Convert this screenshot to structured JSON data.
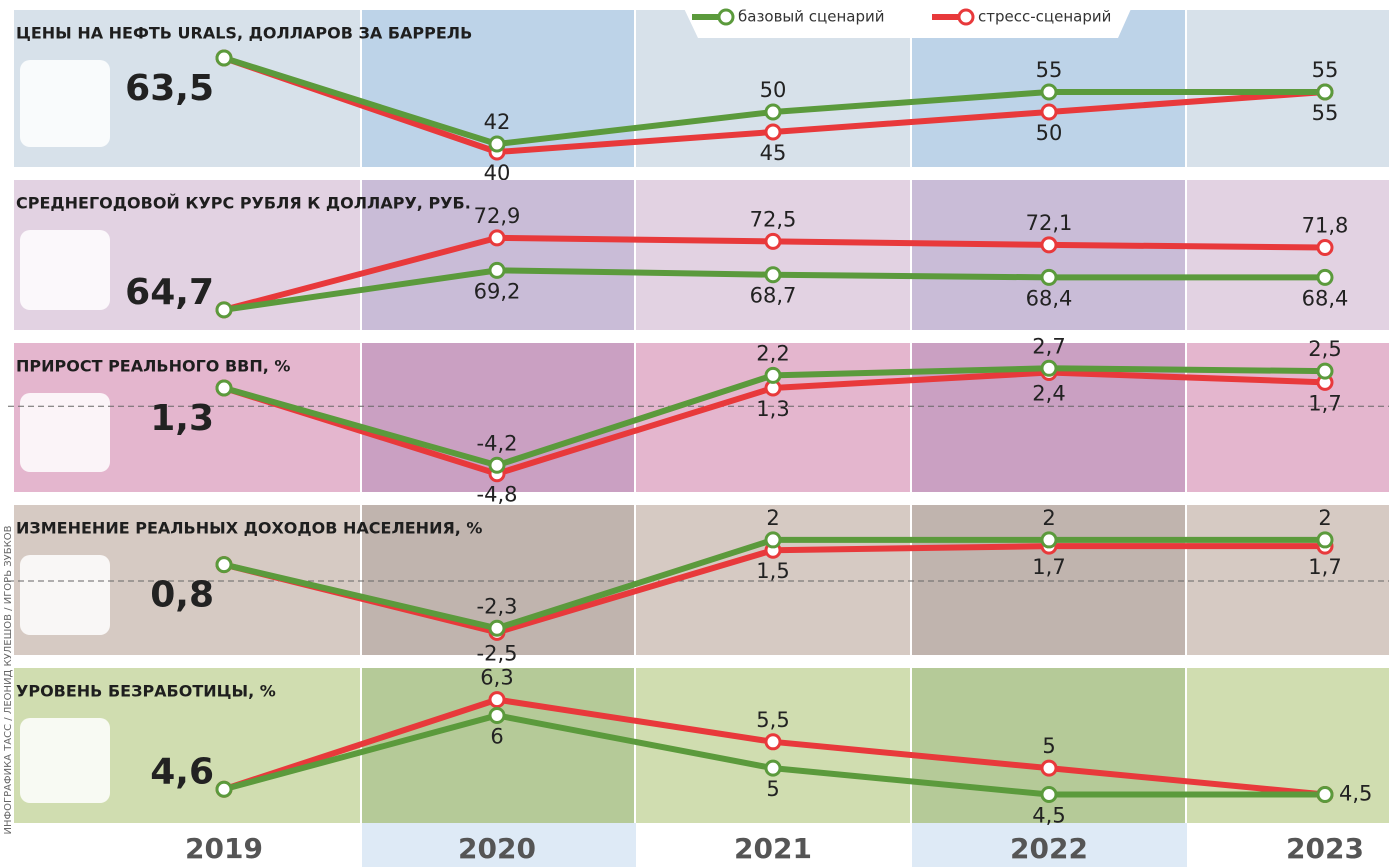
{
  "chart_data": {
    "type": "line",
    "categories": [
      "2019",
      "2020",
      "2021",
      "2022",
      "2023"
    ],
    "series": [
      {
        "name": "базовый сценарий",
        "color": "#5b9a3c"
      },
      {
        "name": "стресс-сценарий",
        "color": "#e8393b"
      }
    ],
    "credit": "ИНФОГРАФИКА ТАСС / ЛЕОНИД КУЛЕШОВ / ИГОРЬ ЗУБКОВ",
    "panels": [
      {
        "title": "ЦЕНЫ НА НЕФТЬ URALS, ДОЛЛАРОВ ЗА БАРРЕЛЬ",
        "ylim": [
          36.25,
          75.5
        ],
        "zero_line": false,
        "series": [
          {
            "values": [
              63.5,
              42,
              50,
              55,
              55
            ],
            "value_labels": [
              "63,5",
              "42",
              "50",
              "55",
              "55"
            ]
          },
          {
            "values": [
              63.5,
              40,
              45,
              50,
              55
            ],
            "value_labels": [
              null,
              "40",
              "45",
              "50",
              "55"
            ]
          }
        ]
      },
      {
        "title": "СРЕДНЕГОДОВОЙ КУРС РУБЛЯ К ДОЛЛАРУ, РУБ.",
        "ylim": [
          62.4,
          79.5
        ],
        "zero_line": false,
        "series": [
          {
            "values": [
              64.7,
              69.2,
              68.7,
              68.4,
              68.4
            ],
            "value_labels": [
              "64,7",
              "69,2",
              "68,7",
              "68,4",
              "68,4"
            ]
          },
          {
            "values": [
              64.7,
              72.9,
              72.5,
              72.1,
              71.8
            ],
            "value_labels": [
              null,
              "72,9",
              "72,5",
              "72,1",
              "71,8"
            ]
          }
        ]
      },
      {
        "title": "ПРИРОСТ РЕАЛЬНОГО ВВП, %",
        "ylim": [
          -6.1,
          4.5
        ],
        "zero_line": true,
        "series": [
          {
            "values": [
              1.3,
              -4.2,
              2.2,
              2.7,
              2.5
            ],
            "value_labels": [
              "1,3",
              "-4,2",
              "2,2",
              "2,7",
              "2,5"
            ]
          },
          {
            "values": [
              1.3,
              -4.8,
              1.3,
              2.4,
              1.7
            ],
            "value_labels": [
              null,
              "-4,8",
              "1,3",
              "2,4",
              "1,7"
            ]
          }
        ]
      },
      {
        "title": "ИЗМЕНЕНИЕ РЕАЛЬНЫХ ДОХОДОВ НАСЕЛЕНИЯ, %",
        "ylim": [
          -3.6,
          3.7
        ],
        "zero_line": true,
        "series": [
          {
            "values": [
              0.8,
              -2.3,
              2,
              2,
              2
            ],
            "value_labels": [
              "0,8",
              "-2,3",
              "2",
              "2",
              "2"
            ]
          },
          {
            "values": [
              0.8,
              -2.5,
              1.5,
              1.7,
              1.7
            ],
            "value_labels": [
              null,
              "-2,5",
              "1,5",
              "1,7",
              "1,7"
            ]
          }
        ]
      },
      {
        "title": "УРОВЕНЬ БЕЗРАБОТИЦЫ, %",
        "ylim": [
          3.96,
          6.9
        ],
        "zero_line": false,
        "series": [
          {
            "values": [
              4.6,
              6,
              5,
              4.5,
              4.5
            ],
            "value_labels": [
              "4,6",
              "6",
              "5",
              "4,5",
              "4,5"
            ]
          },
          {
            "values": [
              4.6,
              6.3,
              5.5,
              5,
              4.5
            ],
            "value_labels": [
              null,
              "6,3",
              "5,5",
              "5",
              null
            ]
          }
        ]
      }
    ]
  }
}
